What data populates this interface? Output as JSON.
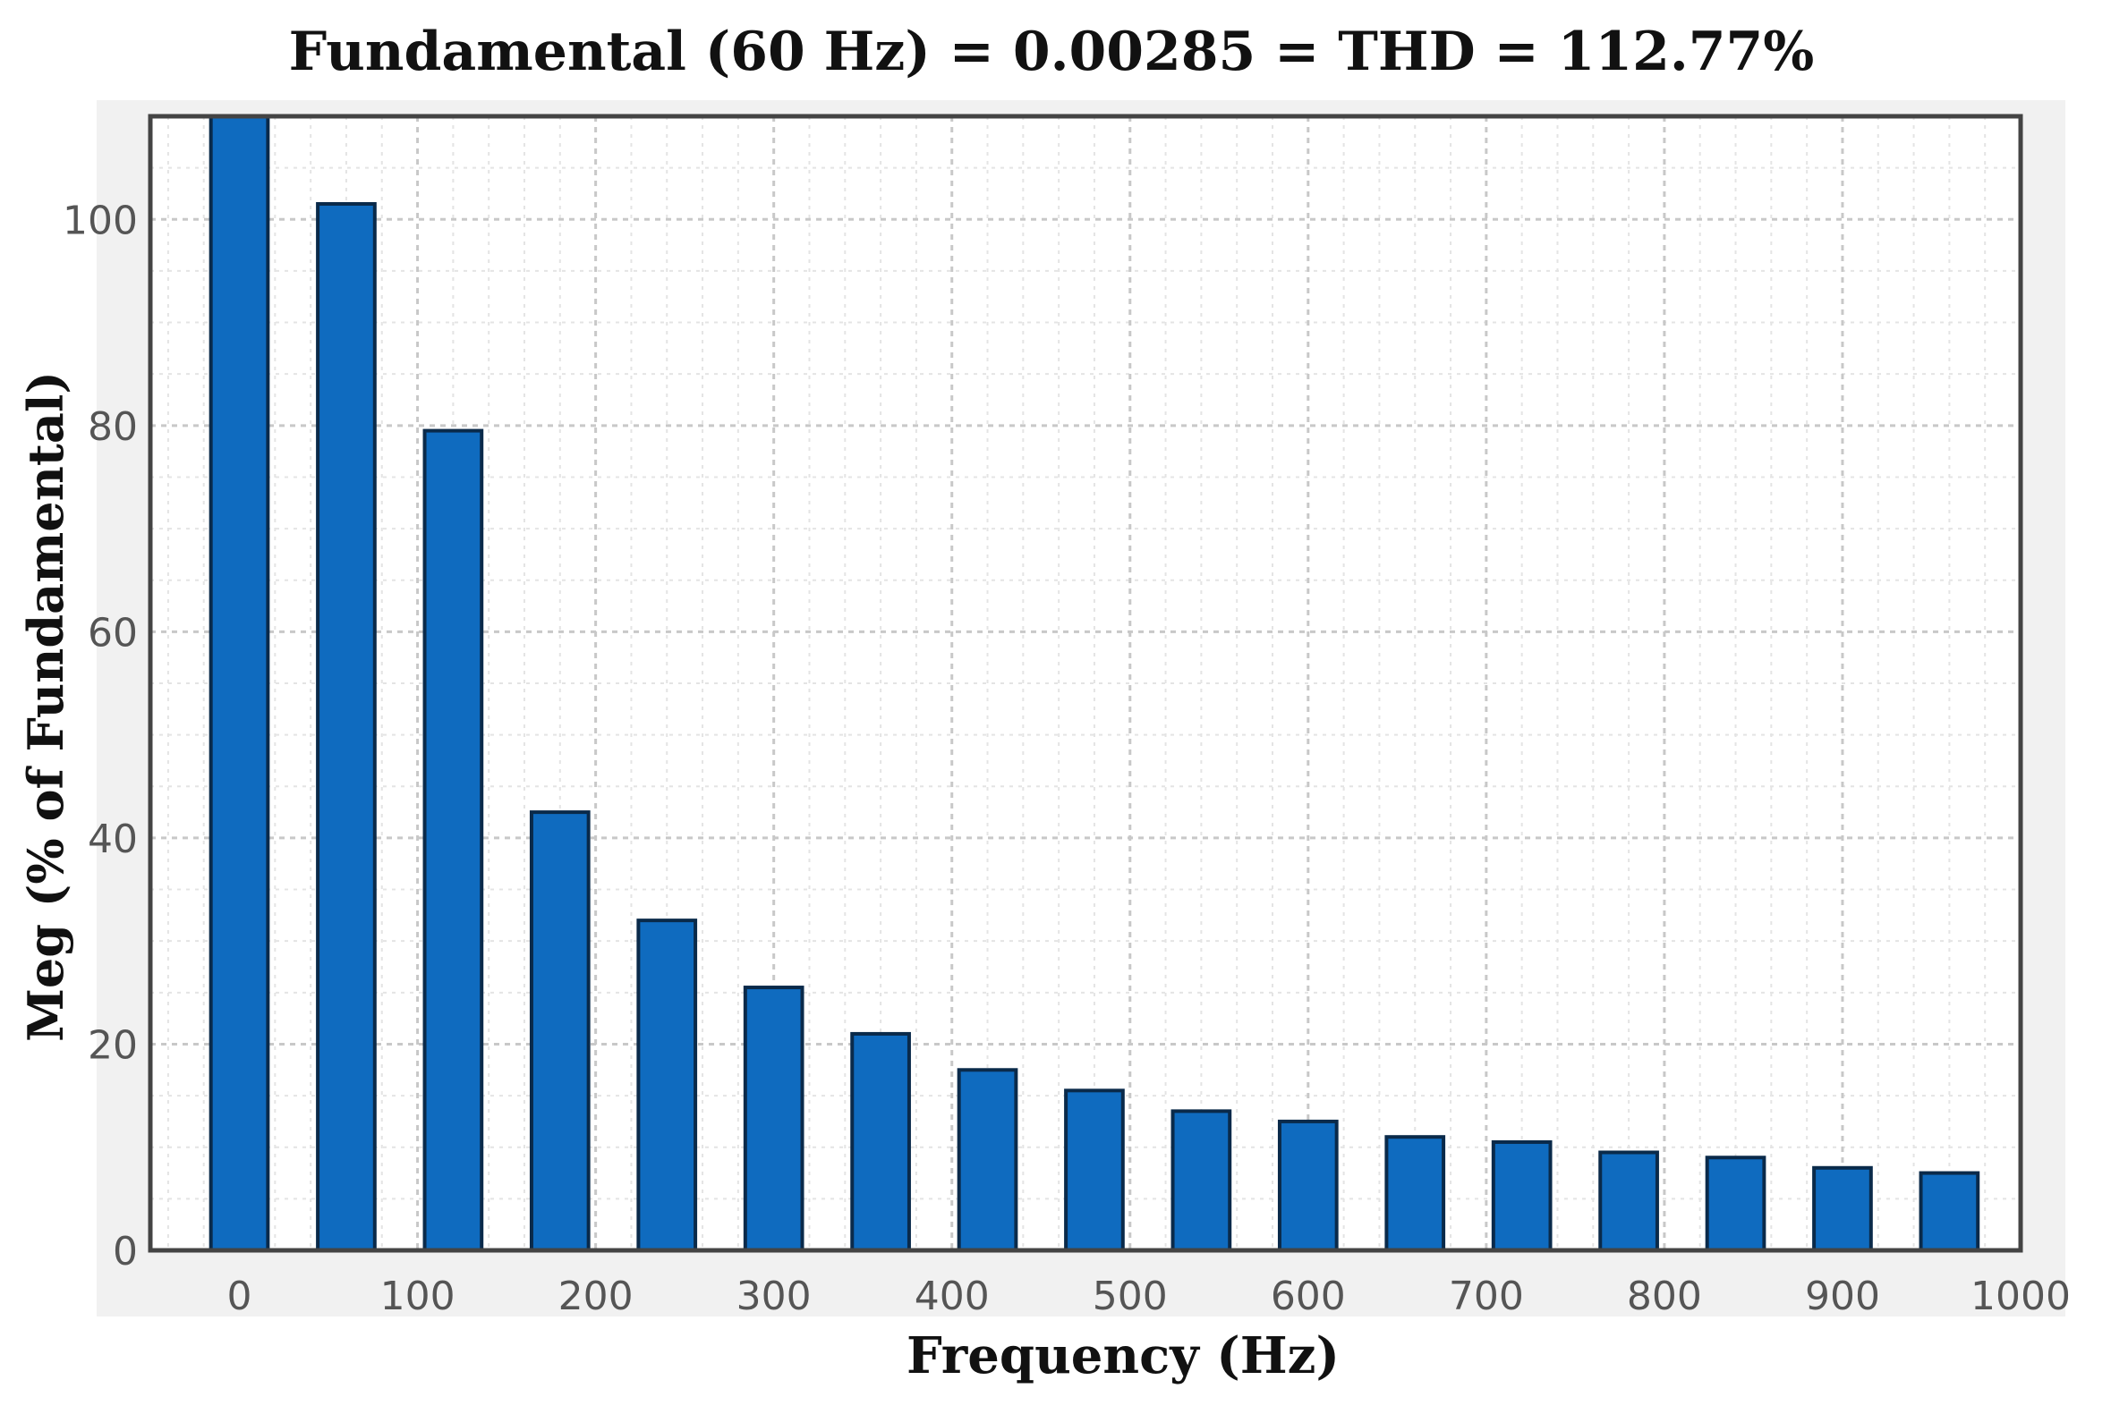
{
  "chart_data": {
    "type": "bar",
    "title": "Fundamental (60 Hz) = 0.00285 = THD = 112.77%",
    "xlabel": "Frequency (Hz)",
    "ylabel": "Meg (% of Fundamental)",
    "x": [
      0,
      60,
      120,
      180,
      240,
      300,
      360,
      420,
      480,
      540,
      600,
      660,
      720,
      780,
      840,
      900,
      960
    ],
    "values": [
      112,
      101.5,
      79.5,
      42.5,
      32,
      25.5,
      21,
      17.5,
      15.5,
      13.5,
      12.5,
      11,
      10.5,
      9.5,
      9,
      8,
      7.5
    ],
    "xlim": [
      -50,
      1000
    ],
    "ylim": [
      0,
      110
    ],
    "xticks": [
      0,
      100,
      200,
      300,
      400,
      500,
      600,
      700,
      800,
      900,
      1000
    ],
    "xtick_labels": [
      "0",
      "100",
      "200",
      "300",
      "400",
      "500",
      "600",
      "700",
      "800",
      "900",
      "1000"
    ],
    "yticks": [
      0,
      20,
      40,
      60,
      80,
      100
    ],
    "ytick_labels": [
      "0",
      "20",
      "40",
      "60",
      "80",
      "100"
    ],
    "grid": true,
    "minor_grid": true,
    "bar_color": "#0f6bbf",
    "legend": "none"
  }
}
